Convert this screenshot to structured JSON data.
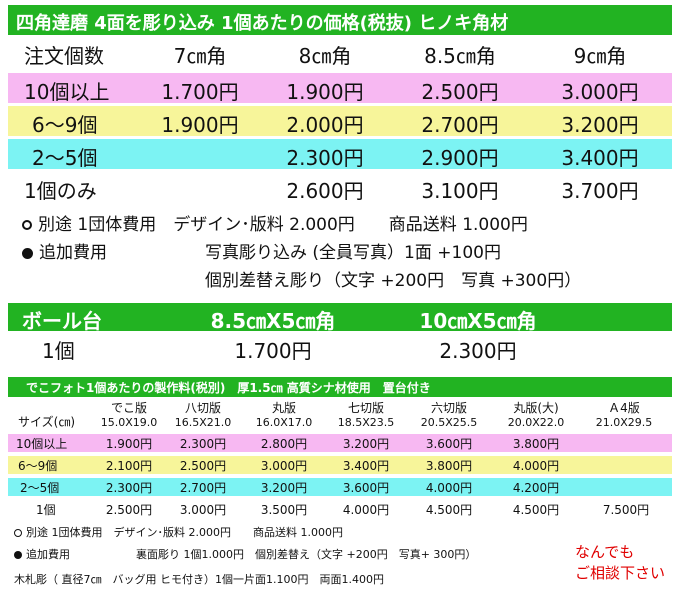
{
  "hinoki": {
    "title": "四角達磨 4面を彫り込み 1個あたりの価格(税抜) ヒノキ角材",
    "corner_label": "注文個数",
    "columns": [
      "7㎝角",
      "8㎝角",
      "8.5㎝角",
      "9㎝角"
    ],
    "rows": [
      {
        "label": "10個以上",
        "values": [
          "1.700円",
          "1.900円",
          "2.500円",
          "3.000円"
        ]
      },
      {
        "label": "6～9個",
        "values": [
          "1.900円",
          "2.000円",
          "2.700円",
          "3.200円"
        ]
      },
      {
        "label": "2～5個",
        "values": [
          "",
          "2.300円",
          "2.900円",
          "3.400円"
        ]
      },
      {
        "label": "1個のみ",
        "values": [
          "",
          "2.600円",
          "3.100円",
          "3.700円"
        ]
      }
    ],
    "notes": [
      "別途 1団体費用　デザイン･版料 2.000円　　商品送料 1.000円",
      "追加費用",
      "写真彫り込み (全員写真）1面 +100円",
      "個別差替え彫り（文字 +200円　写真 +300円）"
    ],
    "colors": {
      "header": "#22b322",
      "pink": "#f7b8f2",
      "yellow": "#f7f59a",
      "cyan": "#7cf3f3"
    }
  },
  "ball": {
    "title": "ボール台",
    "columns": [
      "8.5㎝X5㎝角",
      "10㎝X5㎝角"
    ],
    "row_label": "1個",
    "values": [
      "1.700円",
      "2.300円"
    ]
  },
  "dekofoto": {
    "title": "でこフォト1個あたりの製作料(税別)　厚1.5㎝ 高質シナ材使用　置台付き",
    "size_label": "サイズ(㎝)",
    "columns": [
      {
        "name": "でこ版",
        "dim": "15.0X19.0"
      },
      {
        "name": "八切版",
        "dim": "16.5X21.0"
      },
      {
        "name": "丸版",
        "dim": "16.0X17.0"
      },
      {
        "name": "七切版",
        "dim": "18.5X23.5"
      },
      {
        "name": "六切版",
        "dim": "20.5X25.5"
      },
      {
        "name": "丸版(大)",
        "dim": "20.0X22.0"
      },
      {
        "name": "Ａ4版",
        "dim": "21.0X29.5"
      }
    ],
    "rows": [
      {
        "label": "10個以上",
        "values": [
          "1.900円",
          "2.300円",
          "2.800円",
          "3.200円",
          "3.600円",
          "3.800円",
          ""
        ]
      },
      {
        "label": "6～9個",
        "values": [
          "2.100円",
          "2.500円",
          "3.000円",
          "3.400円",
          "3.800円",
          "4.000円",
          ""
        ]
      },
      {
        "label": "2～5個",
        "values": [
          "2.300円",
          "2.700円",
          "3.200円",
          "3.600円",
          "4.000円",
          "4.200円",
          ""
        ]
      },
      {
        "label": "1個",
        "values": [
          "2.500円",
          "3.000円",
          "3.500円",
          "4.000円",
          "4.500円",
          "4.500円",
          "7.500円"
        ]
      }
    ],
    "notes": [
      "別途 1団体費用　デザイン･版料 2.000円　　商品送料 1.000円",
      "追加費用",
      "裏面彫り 1個1.000円　個別差替え（文字 +200円　写真+ 300円）",
      "木札彫（ 直径7㎝　バッグ用 ヒモ付き）1個一片面1.100円　両面1.400円"
    ],
    "contact": [
      "なんでも",
      "ご相談下さい"
    ]
  }
}
